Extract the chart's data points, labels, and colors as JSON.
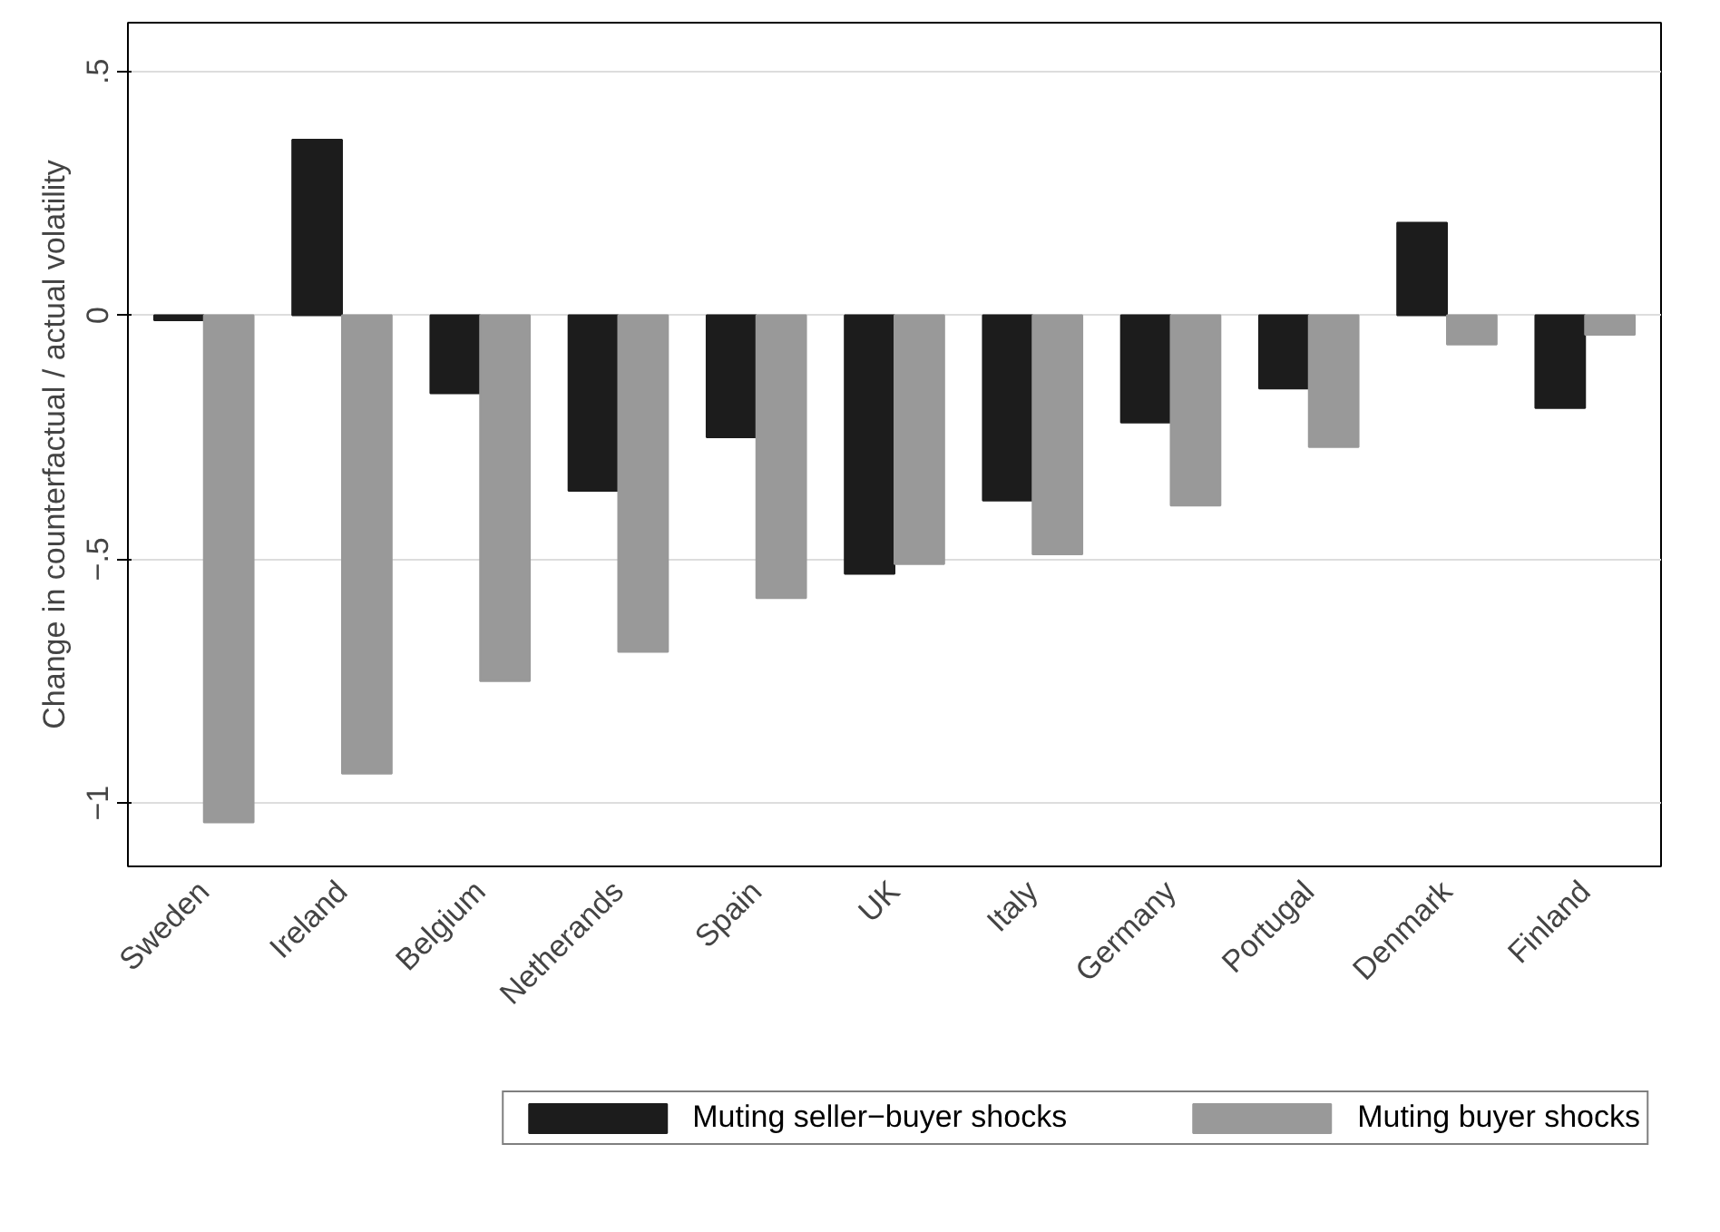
{
  "chart_data": {
    "type": "bar",
    "ylabel": "Change in counterfactual / actual volatility",
    "categories": [
      "Sweden",
      "Ireland",
      "Belgium",
      "Netherands",
      "Spain",
      "UK",
      "Italy",
      "Germany",
      "Portugal",
      "Denmark",
      "Finland"
    ],
    "series": [
      {
        "name": "Muting seller−buyer shocks",
        "color": "#1c1c1c",
        "values": [
          -0.01,
          0.36,
          -0.16,
          -0.36,
          -0.25,
          -0.53,
          -0.38,
          -0.22,
          -0.15,
          0.19,
          -0.19
        ]
      },
      {
        "name": "Muting buyer shocks",
        "color": "#999999",
        "values": [
          -1.04,
          -0.94,
          -0.75,
          -0.69,
          -0.58,
          -0.51,
          -0.49,
          -0.39,
          -0.27,
          -0.06,
          -0.04
        ]
      }
    ],
    "ylim": [
      -1.13,
      0.6
    ],
    "yticks": [
      {
        "value": -1,
        "label": "−1"
      },
      {
        "value": -0.5,
        "label": "−.5"
      },
      {
        "value": 0,
        "label": "0"
      },
      {
        "value": 0.5,
        "label": ".5"
      }
    ],
    "grid": "y",
    "legend": "bottom"
  }
}
